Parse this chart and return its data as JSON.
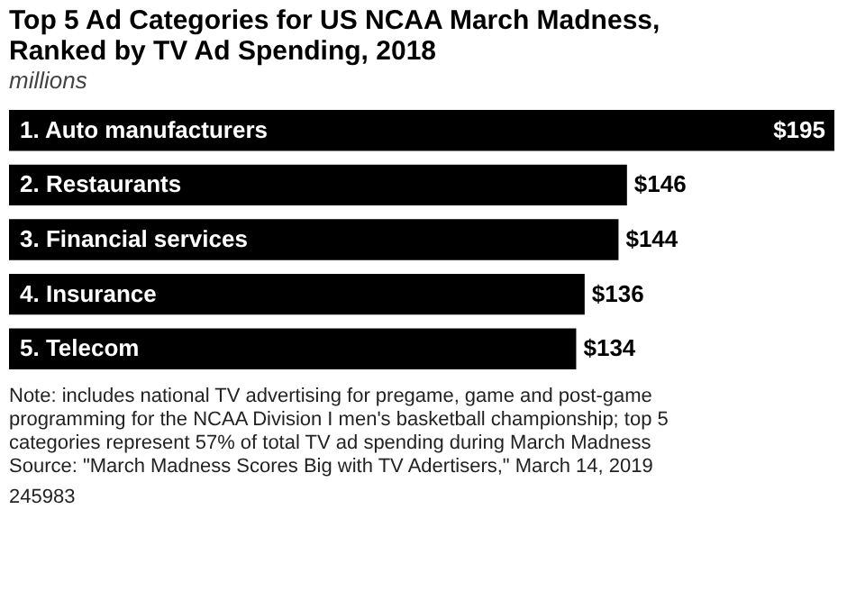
{
  "chart_data": {
    "type": "bar",
    "orientation": "horizontal",
    "title": "Top 5 Ad Categories for US NCAA March Madness, Ranked by TV Ad Spending, 2018",
    "subtitle": "millions",
    "categories": [
      "1. Auto manufacturers",
      "2. Restaurants",
      "3. Financial services",
      "4. Insurance",
      "5. Telecom"
    ],
    "values": [
      195,
      146,
      144,
      136,
      134
    ],
    "value_labels": [
      "$195",
      "$146",
      "$144",
      "$136",
      "$134"
    ],
    "color": "#000000",
    "annotations": [
      "Note: includes national TV advertising for pregame, game and post-game programming for the NCAA Division I men's basketball championship; top 5 categories represent 57% of total TV ad spending during March Madness",
      "Source: \"March Madness Scores Big with TV Adertisers,\" March 14, 2019",
      "245983"
    ]
  }
}
